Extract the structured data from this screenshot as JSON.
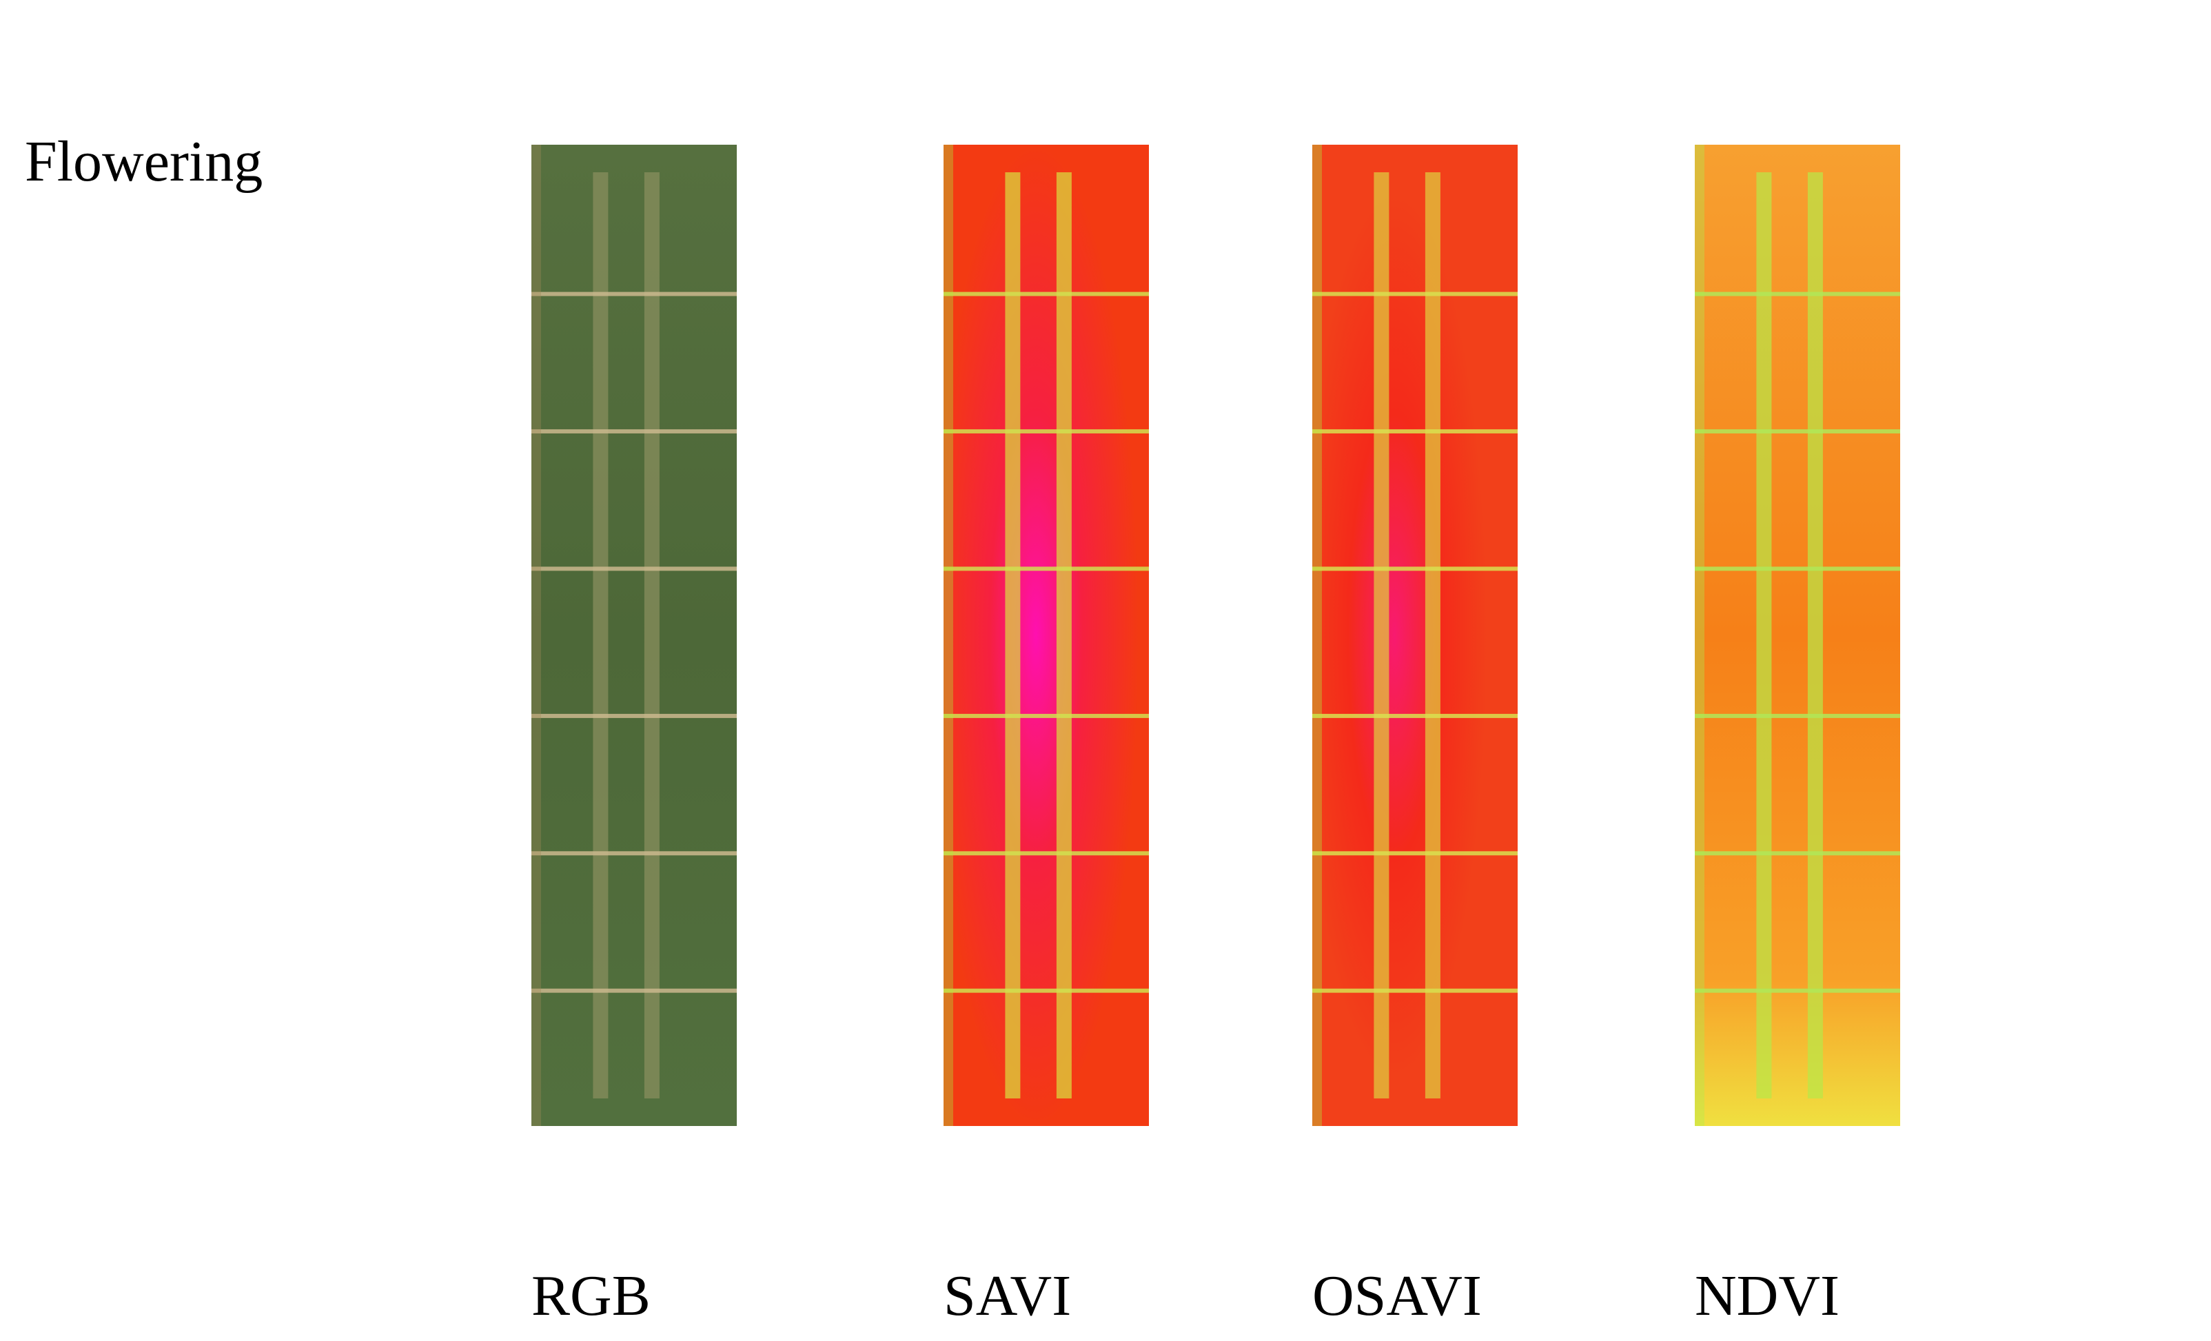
{
  "row_label": "Flowering",
  "panels": [
    {
      "caption": "RGB"
    },
    {
      "caption": "SAVI"
    },
    {
      "caption": "OSAVI"
    },
    {
      "caption": "NDVI"
    }
  ]
}
